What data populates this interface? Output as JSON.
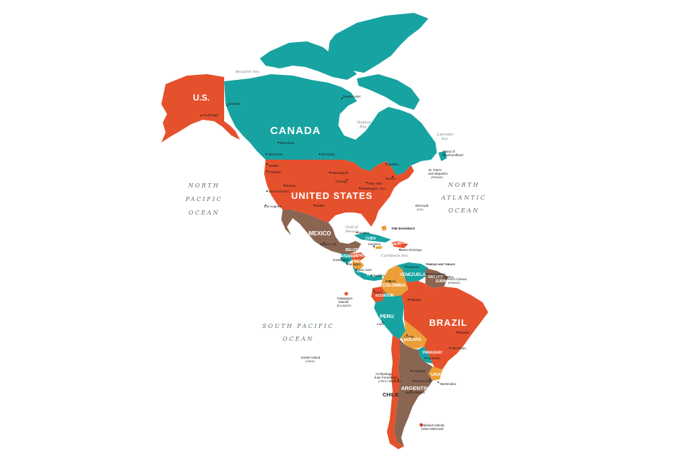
{
  "colors": {
    "teal": "#17a3a1",
    "orange": "#e5512c",
    "brown": "#8a6552",
    "amber": "#ec9f38",
    "land_text": "#ffffff",
    "ocean_text": "#5a6a74"
  },
  "oceans": {
    "north_pacific": [
      "NORTH",
      "PACIFIC",
      "OCEAN"
    ],
    "north_atlantic": [
      "NORTH",
      "ATLANTIC",
      "OCEAN"
    ],
    "south_pacific": [
      "SOUTH PACIFIC",
      "OCEAN"
    ]
  },
  "seas": {
    "beaufort": "Beaufort Sea",
    "labrador": [
      "Labrador",
      "Sea"
    ],
    "hudson": [
      "Hudson",
      "Bay"
    ],
    "gulf_mexico": [
      "Gulf of",
      "Mexico"
    ],
    "caribbean": "Caribbean Sea"
  },
  "countries": {
    "us_alaska": "U.S.",
    "canada": "CANADA",
    "united_states": "UNITED STATES",
    "mexico": "MEXICO",
    "cuba": "CUBA",
    "bahamas": "THE BAHAMAS",
    "belize": "BELIZE",
    "guatemala": "GUATEMALA",
    "honduras": "HONDURAS",
    "nicaragua": "NICARAGUA",
    "costa_rica": "COSTA RICA",
    "panama": "PANAMA",
    "haiti": "HAITI",
    "dominican_republic": "DOMINICAN REPUBLIC",
    "jamaica": "JAMAICA",
    "venezuela": "VENEZUELA",
    "colombia": "COLOMBIA",
    "ecuador": "ECUADOR",
    "guyana": "GUYANA",
    "suriname": "SURINAME",
    "trinidad": "TRINIDAD AND TOBAGO",
    "brazil": "BRAZIL",
    "peru": "PERU",
    "bolivia": "BOLIVIA",
    "paraguay": "PARAGUAY",
    "uruguay": "URUGUAY",
    "argentina": "ARGENTINA",
    "chile": "CHILE"
  },
  "territories": {
    "newfoundland": [
      "Island of",
      "Newfoundland"
    ],
    "st_pierre": [
      "St. Pierre",
      "and Miquelon"
    ],
    "st_pierre_sub": "(FRANCE)",
    "bermuda": "Bermuda",
    "bermuda_sub": "(U.K.)",
    "french_guiana": "French Guiana",
    "french_guiana_sub": "(FRANCE)",
    "galapagos": [
      "Galapagos",
      "Islands"
    ],
    "galapagos_sub": "(ECUADOR)",
    "easter": "Easter Island",
    "easter_sub": "(CHILE)",
    "juan_fernandez": [
      "Archipelago",
      "Juan Fernández"
    ],
    "juan_fernandez_sub": "(CHILE)",
    "falkland": [
      "Falkland Islands",
      "(Islas Malvinas)"
    ]
  },
  "cities": {
    "dawson": "Dawson",
    "anchorage": "Anchorage",
    "rankin": "Rankin Inlet",
    "edmonton": "Edmonton",
    "vancouver": "Vancouver",
    "winnipeg": "Winnipeg",
    "quebec": "Quebec",
    "seattle": "Seattle",
    "portland": "Portland",
    "minneapolis": "Minneapolis",
    "chicago": "Chicago",
    "boston": "Boston",
    "new_york": "New York",
    "washington": "Washington, D.C.",
    "denver": "Denver",
    "san_francisco": "San Francisco",
    "los_angeles": "Los Angeles",
    "dallas": "Dallas",
    "havana": "Havana",
    "mexico_city": "Mexico City",
    "guatemala_city": "Guatemala",
    "kingston": "Kingston",
    "santo_domingo": "Santo Domingo",
    "managua": "Managua",
    "san_jose": "San José",
    "panama_city": "Panama",
    "caracas": "Caracas",
    "bogota": "Bogotá",
    "georgetown": "Georgetown",
    "paramaribo": "Paramaribo",
    "quito": "Quito",
    "manaus": "Manaus",
    "lima": "Lima",
    "brasilia": "Brasília",
    "la_paz": "La Paz",
    "sao_paulo": "São Paulo",
    "asuncion": "Asunción",
    "cordoba": "Córdoba",
    "santiago": "Santiago",
    "buenos_aires": "Buenos Aires",
    "montevideo": "Montevideo",
    "bahia_blanca": "Bahía Blanca"
  }
}
